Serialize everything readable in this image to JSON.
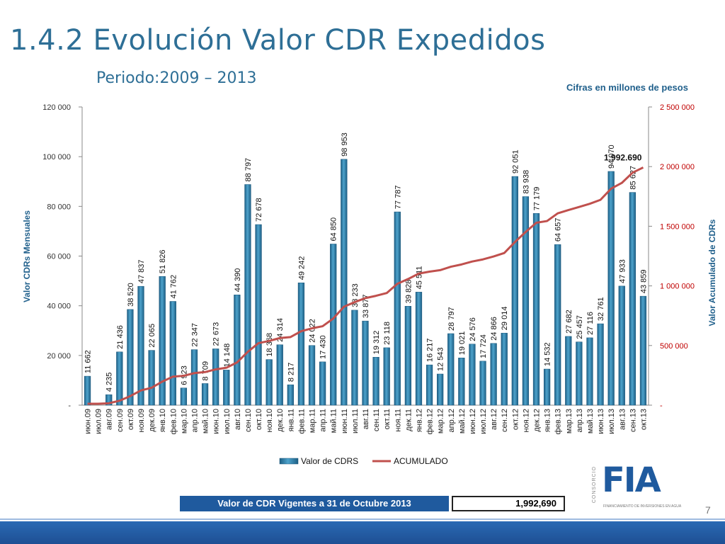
{
  "header": {
    "title": "1.4.2 Evolución Valor CDR Expedidos",
    "subtitle": "Periodo:2009 – 2013",
    "units_note": "Cifras en millones de pesos"
  },
  "chart_data": {
    "type": "bar",
    "ylabel": "Valor CDRs Mensuales",
    "y2label": "Valor Acumulado de CDRs",
    "ylim": [
      0,
      120000
    ],
    "y2lim": [
      0,
      2500000
    ],
    "y_ticks": [
      "-",
      "20 000",
      "40 000",
      "60 000",
      "80 000",
      "100 000",
      "120 000"
    ],
    "y2_ticks": [
      "-",
      "500 000",
      "1 000 000",
      "1 500 000",
      "2 000 000",
      "2 500 000"
    ],
    "legend_position": "bottom",
    "categories": [
      "июн.09",
      "июл.09",
      "авг.09",
      "сен.09",
      "окт.09",
      "ноя.09",
      "дек.09",
      "янв.10",
      "фев.10",
      "мар.10",
      "апр.10",
      "май.10",
      "июн.10",
      "июл.10",
      "авг.10",
      "сен.10",
      "окт.10",
      "ноя.10",
      "дек.10",
      "янв.11",
      "фев.11",
      "мар.11",
      "апр.11",
      "май.11",
      "июн.11",
      "июл.11",
      "авг.11",
      "сен.11",
      "окт.11",
      "ноя.11",
      "дек.11",
      "янв.12",
      "фев.12",
      "мар.12",
      "апр.12",
      "май.12",
      "июн.12",
      "июл.12",
      "авг.12",
      "сен.12",
      "окт.12",
      "ноя.12",
      "дек.12",
      "янв.13",
      "фев.13",
      "мар.13",
      "апр.13",
      "май.13",
      "июн.13",
      "июл.13",
      "авг.13",
      "сен.13",
      "окт.13"
    ],
    "series": [
      {
        "name": "Valor de CDRS",
        "type": "bar",
        "color": "#2f7fa8",
        "values": [
          11662,
          0,
          4235,
          21436,
          38520,
          47837,
          22065,
          51826,
          41762,
          6923,
          22347,
          8709,
          22673,
          14148,
          44390,
          88797,
          72678,
          18368,
          24314,
          8217,
          49242,
          24022,
          17430,
          64850,
          98953,
          38233,
          33877,
          19312,
          23118,
          77787,
          39828,
          45511,
          16217,
          12543,
          28797,
          19021,
          24576,
          17724,
          24866,
          29014,
          92051,
          83938,
          77179,
          14532,
          64657,
          27682,
          25457,
          27116,
          32761,
          94070,
          47933,
          85627,
          43859
        ],
        "labels": [
          "11 662",
          "",
          "4 235",
          "21 436",
          "38 520",
          "47 837",
          "22 065",
          "51 826",
          "41 762",
          "6 923",
          "22 347",
          "8 709",
          "22 673",
          "14 148",
          "44 390",
          "88 797",
          "72 678",
          "18 368",
          "24 314",
          "8 217",
          "49 242",
          "24 022",
          "17 430",
          "64 850",
          "98 953",
          "38 233",
          "33 877",
          "19 312",
          "23 118",
          "77 787",
          "39 828",
          "45 511",
          "16 217",
          "12 543",
          "28 797",
          "19 021",
          "24 576",
          "17 724",
          "24 866",
          "29 014",
          "92 051",
          "83 938",
          "77 179",
          "14 532",
          "64 657",
          "27 682",
          "25 457",
          "27 116",
          "32 761",
          "94 070",
          "47 933",
          "85 627",
          "43 859"
        ]
      },
      {
        "name": "ACUMULADO",
        "type": "line",
        "axis": "right",
        "color": "#c0504d",
        "values": [
          11662,
          11662,
          15897,
          37333,
          75853,
          123690,
          145755,
          197581,
          239343,
          246266,
          268613,
          277322,
          299995,
          314143,
          358533,
          447330,
          520008,
          538376,
          562690,
          570907,
          620149,
          644171,
          661601,
          726451,
          825404,
          863637,
          897514,
          916826,
          939944,
          1017731,
          1057559,
          1103070,
          1119287,
          1131830,
          1160627,
          1179648,
          1204224,
          1221948,
          1246814,
          1275828,
          1367879,
          1451817,
          1528996,
          1543528,
          1608185,
          1635867,
          1661324,
          1688440,
          1721201,
          1815271,
          1863204,
          1948831,
          1992690
        ],
        "end_label": "1.992.690"
      }
    ]
  },
  "summary": {
    "label": "Valor de CDR Vigentes a 31 de Octubre 2013",
    "value": "1,992,690"
  },
  "logo": {
    "mark": "FIA",
    "side_text": "CONSORCIO",
    "tagline": "FINANCIAMIENTO DE INVERSIONES EN AGUA"
  },
  "page_number": "7",
  "colors": {
    "title": "#2e6f96",
    "footer": "#1f5a9e"
  }
}
